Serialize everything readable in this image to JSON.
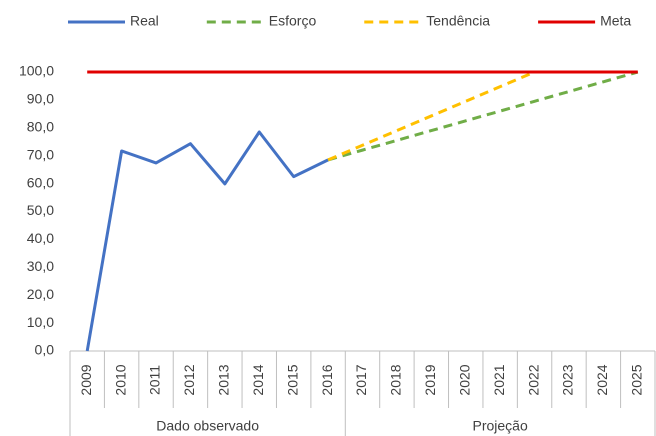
{
  "chart_data": {
    "type": "line",
    "categories": [
      "2009",
      "2010",
      "2011",
      "2012",
      "2013",
      "2014",
      "2015",
      "2016",
      "2017",
      "2018",
      "2019",
      "2020",
      "2021",
      "2022",
      "2023",
      "2024",
      "2025"
    ],
    "x_groups": [
      "Dado observado",
      "Projeção"
    ],
    "series": [
      {
        "name": "Real",
        "color": "#4472c4",
        "dash": false,
        "values": [
          0,
          71.7,
          67.4,
          74.3,
          59.9,
          78.5,
          62.5,
          68.5,
          null,
          null,
          null,
          null,
          null,
          null,
          null,
          null,
          null
        ]
      },
      {
        "name": "Esforço",
        "color": "#70ad47",
        "dash": true,
        "values": [
          null,
          null,
          null,
          null,
          null,
          null,
          null,
          68.5,
          72,
          75.5,
          79,
          82.5,
          86,
          89.5,
          93,
          96.5,
          100
        ]
      },
      {
        "name": "Tendência",
        "color": "#ffc000",
        "dash": true,
        "values": [
          null,
          null,
          null,
          null,
          null,
          null,
          null,
          68.5,
          73.75,
          79,
          84.25,
          89.5,
          94.75,
          100,
          null,
          null,
          null
        ]
      },
      {
        "name": "Meta",
        "color": "#e00000",
        "dash": false,
        "values": [
          100,
          100,
          100,
          100,
          100,
          100,
          100,
          100,
          100,
          100,
          100,
          100,
          100,
          100,
          100,
          100,
          100
        ]
      }
    ],
    "ylim": [
      0,
      100
    ],
    "yticks": [
      {
        "value": 0,
        "label": "0,0"
      },
      {
        "value": 10,
        "label": "10,0"
      },
      {
        "value": 20,
        "label": "20,0"
      },
      {
        "value": 30,
        "label": "30,0"
      },
      {
        "value": 40,
        "label": "40,0"
      },
      {
        "value": 50,
        "label": "50,0"
      },
      {
        "value": 60,
        "label": "60,0"
      },
      {
        "value": 70,
        "label": "70,0"
      },
      {
        "value": 80,
        "label": "80,0"
      },
      {
        "value": 90,
        "label": "90,0"
      },
      {
        "value": 100,
        "label": "100,0"
      }
    ],
    "grid": false,
    "legend": "top"
  }
}
